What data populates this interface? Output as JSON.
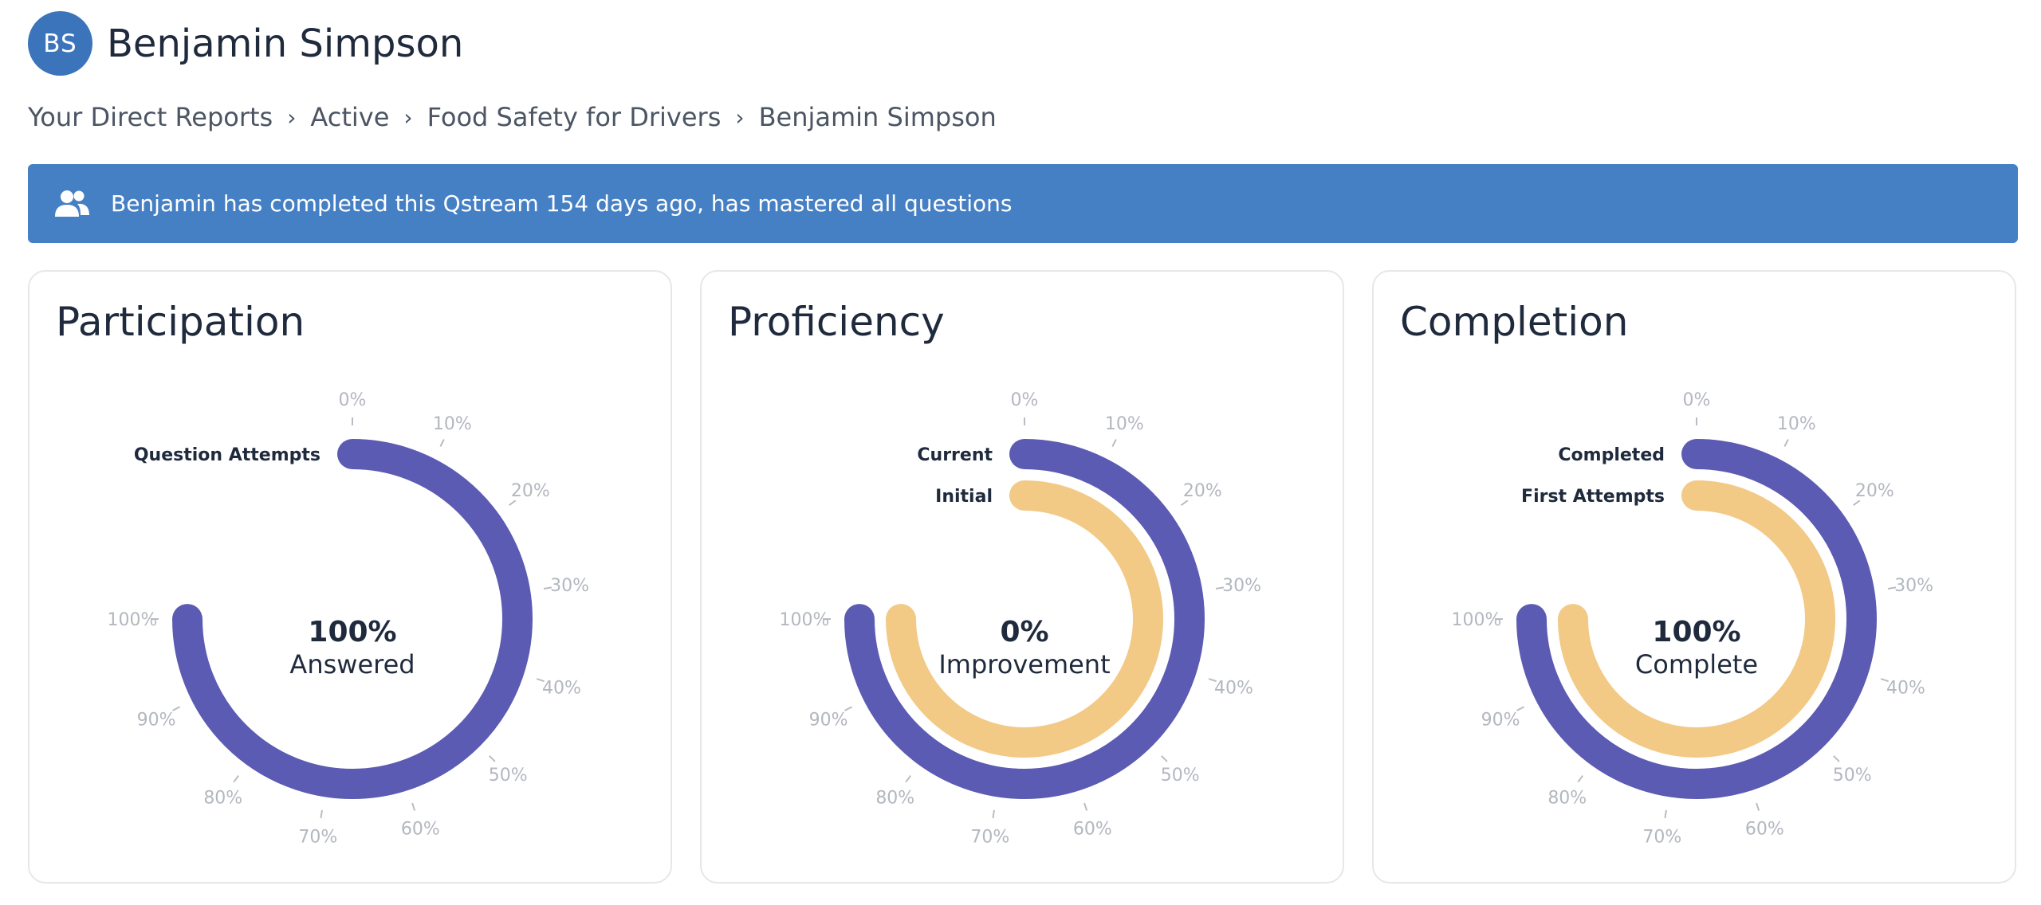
{
  "user": {
    "initials": "BS",
    "name": "Benjamin Simpson"
  },
  "breadcrumb": [
    "Your Direct Reports",
    "Active",
    "Food Safety for Drivers",
    "Benjamin Simpson"
  ],
  "banner": {
    "icon": "users-icon",
    "text": "Benjamin has completed this Qstream 154 days ago, has mastered all questions"
  },
  "colors": {
    "primary_ring": "#5b5bb3",
    "secondary_ring": "#f2c985",
    "banner": "#4680c4",
    "avatar": "#3b74ba"
  },
  "ticks": [
    "0%",
    "10%",
    "20%",
    "30%",
    "40%",
    "50%",
    "60%",
    "70%",
    "80%",
    "90%",
    "100%"
  ],
  "cards": [
    {
      "title": "Participation",
      "center_value": "100%",
      "center_label": "Answered",
      "rings": [
        {
          "label": "Question Attempts",
          "value": 100
        }
      ]
    },
    {
      "title": "Proficiency",
      "center_value": "0%",
      "center_label": "Improvement",
      "rings": [
        {
          "label": "Current",
          "value": 100
        },
        {
          "label": "Initial",
          "value": 100
        }
      ]
    },
    {
      "title": "Completion",
      "center_value": "100%",
      "center_label": "Complete",
      "rings": [
        {
          "label": "Completed",
          "value": 100
        },
        {
          "label": "First Attempts",
          "value": 100
        }
      ]
    }
  ]
}
